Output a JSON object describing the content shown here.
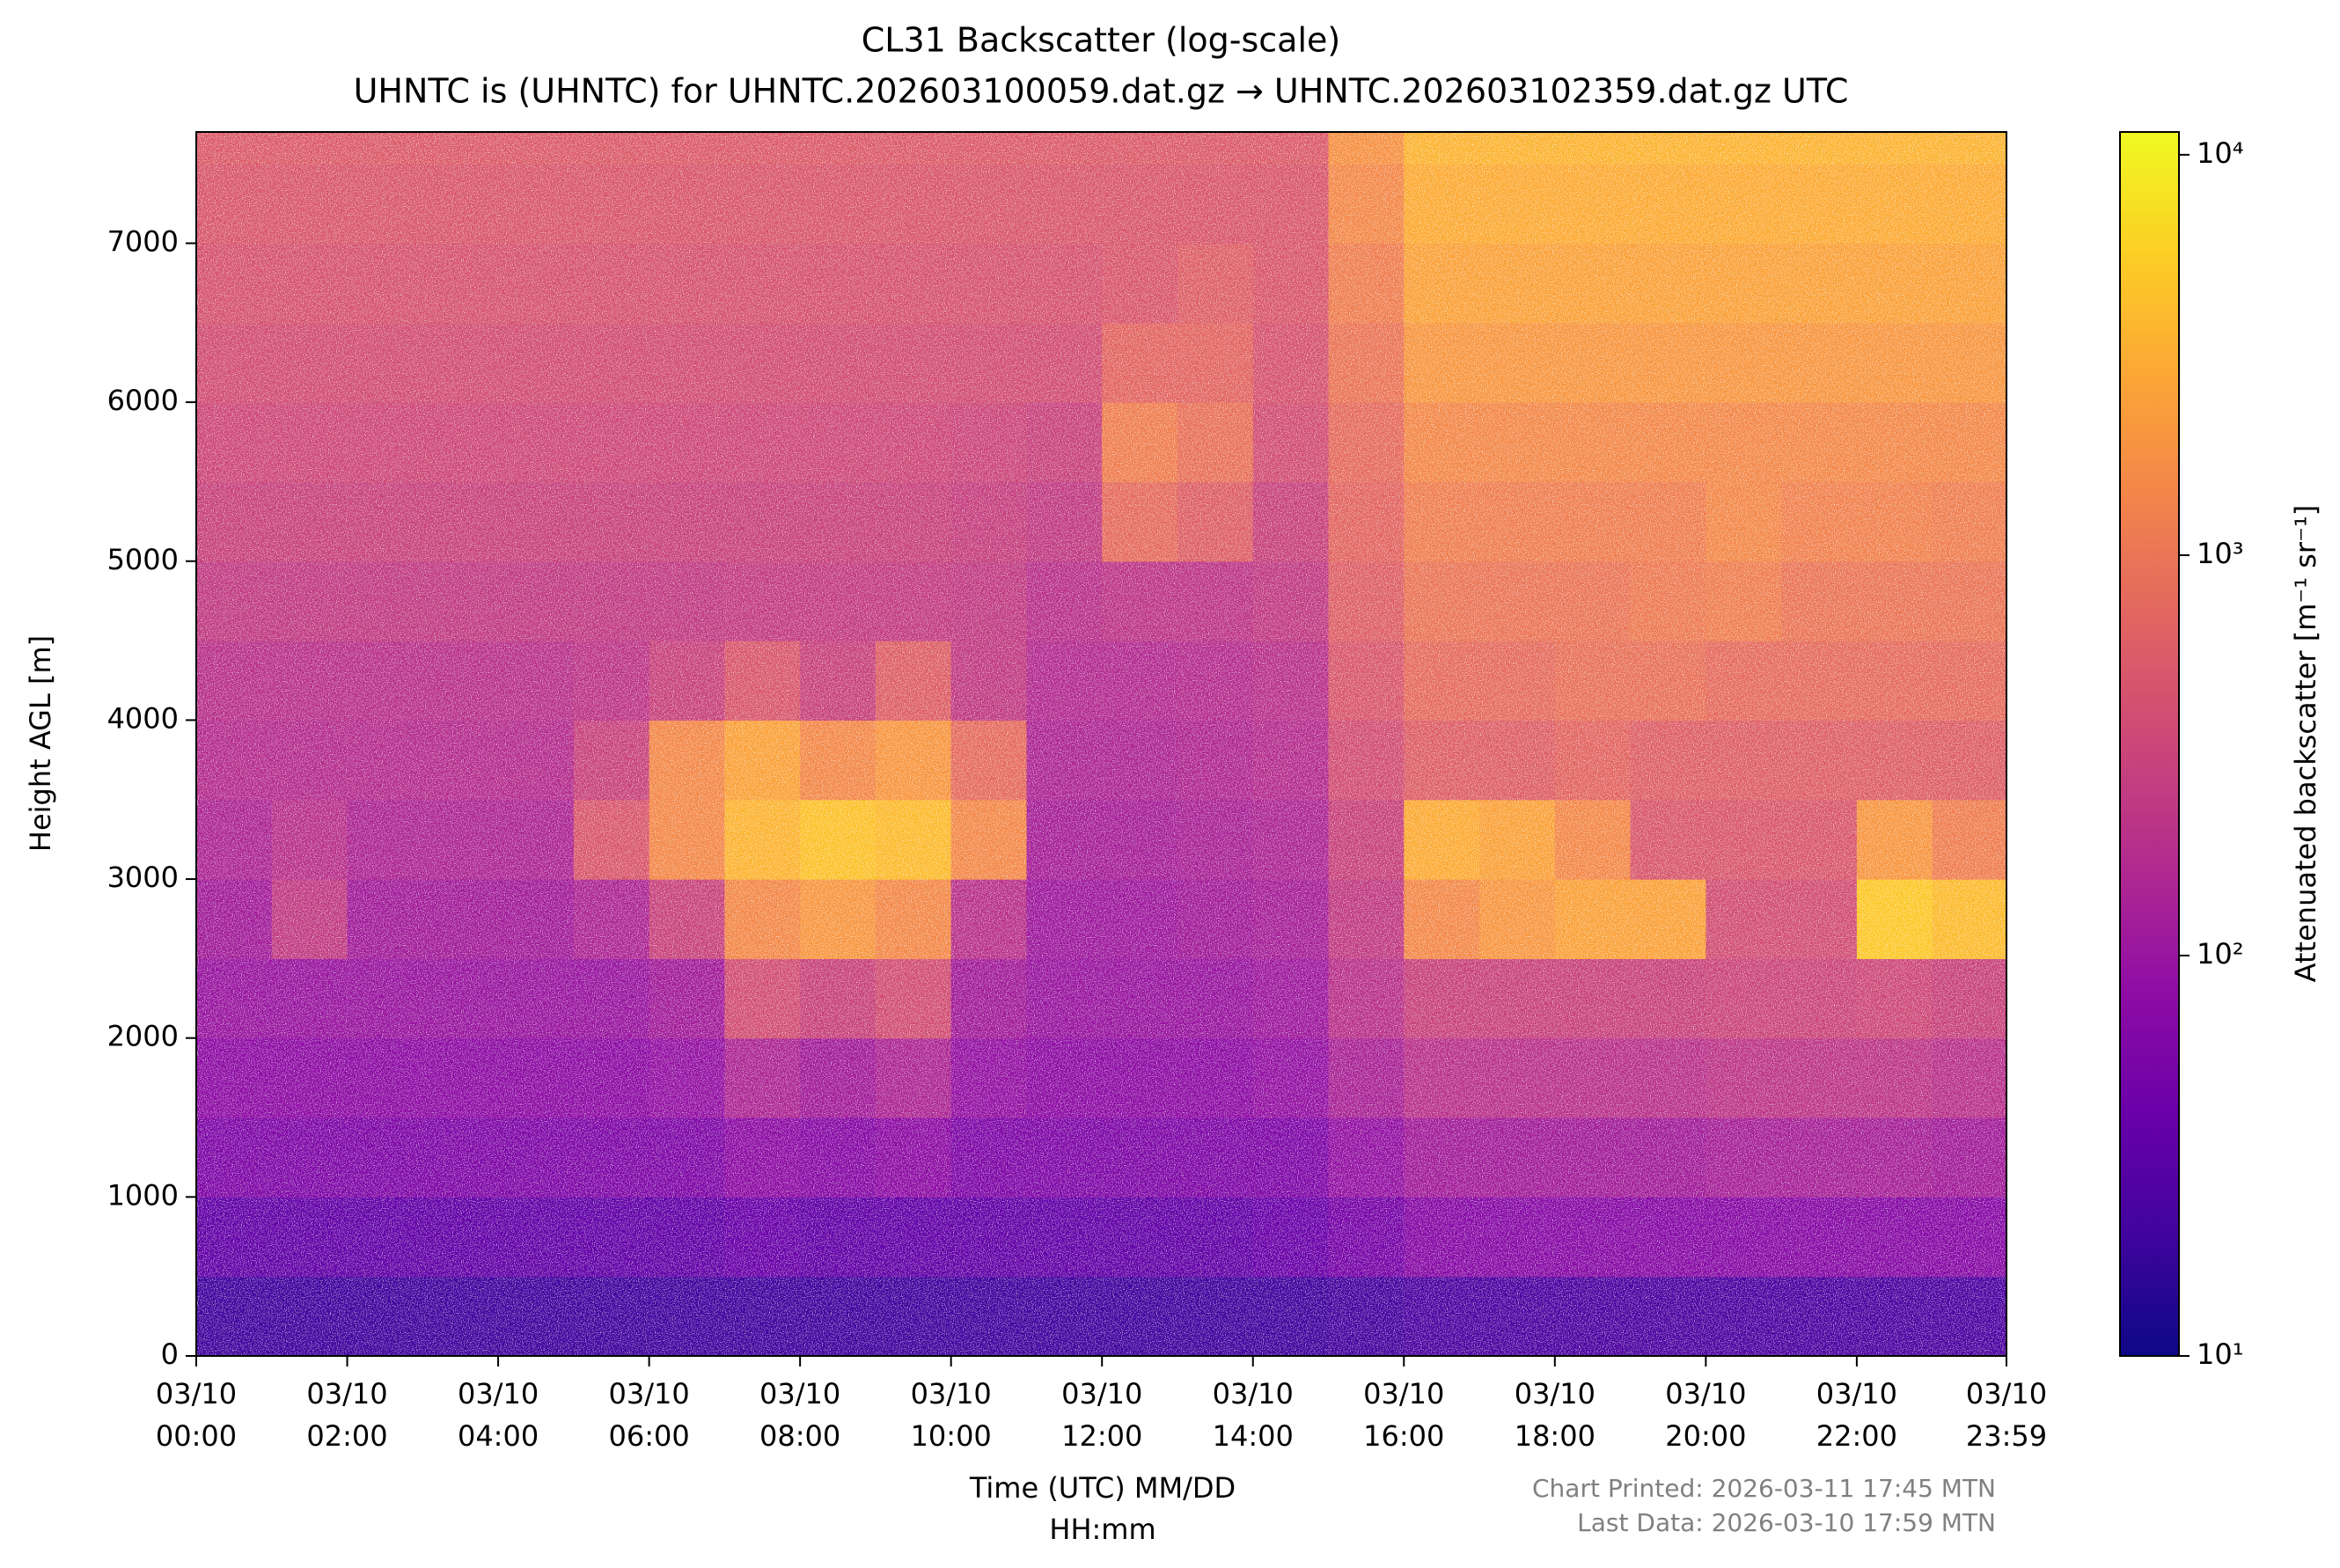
{
  "chart_data": {
    "type": "heatmap",
    "title": "CL31 Backscatter (log-scale)",
    "subtitle": "UHNTC is (UHNTC) for UHNTC.202603100059.dat.gz → UHNTC.202603102359.dat.gz UTC",
    "xlabel": [
      "Time (UTC) MM/DD",
      "HH:mm"
    ],
    "ylabel": "Height AGL [m]",
    "annotations": [
      "Chart Printed: 2026-03-11 17:45 MTN",
      "Last Data: 2026-03-10 17:59 MTN"
    ],
    "xlim": [
      0,
      1439
    ],
    "ylim": [
      0,
      7700
    ],
    "xticks": [
      {
        "value": 0,
        "label": [
          "03/10",
          "00:00"
        ]
      },
      {
        "value": 120,
        "label": [
          "03/10",
          "02:00"
        ]
      },
      {
        "value": 240,
        "label": [
          "03/10",
          "04:00"
        ]
      },
      {
        "value": 360,
        "label": [
          "03/10",
          "06:00"
        ]
      },
      {
        "value": 480,
        "label": [
          "03/10",
          "08:00"
        ]
      },
      {
        "value": 600,
        "label": [
          "03/10",
          "10:00"
        ]
      },
      {
        "value": 720,
        "label": [
          "03/10",
          "12:00"
        ]
      },
      {
        "value": 840,
        "label": [
          "03/10",
          "14:00"
        ]
      },
      {
        "value": 960,
        "label": [
          "03/10",
          "16:00"
        ]
      },
      {
        "value": 1080,
        "label": [
          "03/10",
          "18:00"
        ]
      },
      {
        "value": 1200,
        "label": [
          "03/10",
          "20:00"
        ]
      },
      {
        "value": 1320,
        "label": [
          "03/10",
          "22:00"
        ]
      },
      {
        "value": 1439,
        "label": [
          "03/10",
          "23:59"
        ]
      }
    ],
    "yticks": [
      0,
      1000,
      2000,
      3000,
      4000,
      5000,
      6000,
      7000
    ],
    "x_bins": [
      0,
      60,
      120,
      180,
      240,
      300,
      360,
      420,
      480,
      540,
      600,
      660,
      720,
      780,
      840,
      900,
      960,
      1020,
      1080,
      1140,
      1200,
      1260,
      1320,
      1380,
      1439
    ],
    "y_bins": [
      0,
      500,
      1000,
      1500,
      2000,
      2500,
      3000,
      3500,
      4000,
      4500,
      5000,
      5500,
      6000,
      6500,
      7000,
      7500,
      7700
    ],
    "z": [
      [
        20,
        20,
        20,
        20,
        20,
        20,
        20,
        20,
        20,
        20,
        20,
        20,
        20,
        20,
        20,
        22,
        25,
        25,
        25,
        25,
        25,
        25,
        25,
        25
      ],
      [
        35,
        35,
        35,
        35,
        35,
        35,
        35,
        40,
        35,
        35,
        35,
        35,
        35,
        35,
        40,
        50,
        70,
        70,
        70,
        70,
        70,
        70,
        70,
        70
      ],
      [
        60,
        60,
        60,
        60,
        60,
        60,
        60,
        80,
        70,
        80,
        60,
        60,
        60,
        60,
        60,
        90,
        120,
        120,
        120,
        120,
        130,
        130,
        130,
        120
      ],
      [
        80,
        80,
        80,
        80,
        80,
        80,
        90,
        150,
        120,
        150,
        90,
        80,
        80,
        80,
        90,
        140,
        200,
        200,
        200,
        200,
        220,
        220,
        220,
        200
      ],
      [
        100,
        100,
        100,
        100,
        100,
        100,
        120,
        400,
        300,
        400,
        120,
        100,
        100,
        100,
        110,
        200,
        300,
        300,
        300,
        300,
        320,
        320,
        350,
        300
      ],
      [
        120,
        250,
        120,
        120,
        120,
        150,
        300,
        1500,
        2000,
        1500,
        200,
        110,
        110,
        120,
        130,
        250,
        1500,
        2000,
        2500,
        2500,
        400,
        400,
        5000,
        4000
      ],
      [
        150,
        200,
        150,
        150,
        150,
        500,
        1500,
        3500,
        4500,
        4000,
        1500,
        130,
        130,
        140,
        150,
        300,
        3000,
        2500,
        1500,
        500,
        500,
        500,
        2000,
        1200
      ],
      [
        180,
        180,
        180,
        180,
        180,
        300,
        1500,
        2500,
        1500,
        2000,
        800,
        150,
        150,
        160,
        180,
        400,
        600,
        600,
        700,
        600,
        600,
        600,
        600,
        600
      ],
      [
        200,
        200,
        200,
        200,
        200,
        220,
        300,
        500,
        300,
        600,
        250,
        170,
        170,
        180,
        200,
        500,
        800,
        800,
        900,
        900,
        800,
        800,
        800,
        800
      ],
      [
        250,
        250,
        250,
        250,
        250,
        250,
        250,
        260,
        260,
        260,
        250,
        200,
        220,
        220,
        250,
        600,
        1000,
        1000,
        1000,
        1100,
        1200,
        1000,
        1000,
        1000
      ],
      [
        300,
        300,
        300,
        300,
        300,
        300,
        300,
        300,
        300,
        300,
        280,
        250,
        800,
        600,
        300,
        700,
        1200,
        1200,
        1200,
        1200,
        1500,
        1300,
        1300,
        1200
      ],
      [
        350,
        350,
        350,
        350,
        350,
        350,
        350,
        350,
        350,
        350,
        330,
        300,
        1200,
        900,
        400,
        800,
        1500,
        1500,
        1500,
        1500,
        1500,
        1500,
        1500,
        1500
      ],
      [
        400,
        400,
        400,
        400,
        400,
        400,
        400,
        400,
        400,
        400,
        400,
        400,
        700,
        700,
        450,
        1000,
        2000,
        2000,
        2000,
        2000,
        2000,
        2000,
        2000,
        2000
      ],
      [
        450,
        450,
        450,
        450,
        450,
        450,
        450,
        450,
        450,
        450,
        450,
        450,
        500,
        600,
        500,
        1200,
        2500,
        2500,
        2500,
        2500,
        2500,
        2500,
        2500,
        2500
      ],
      [
        500,
        500,
        500,
        500,
        500,
        500,
        500,
        500,
        500,
        500,
        500,
        500,
        500,
        500,
        500,
        1500,
        3000,
        3000,
        3000,
        3000,
        3000,
        3000,
        3000,
        3000
      ],
      [
        550,
        550,
        550,
        550,
        550,
        550,
        550,
        550,
        550,
        550,
        550,
        550,
        550,
        550,
        550,
        1800,
        3500,
        3500,
        3500,
        3500,
        3500,
        3500,
        3500,
        3500
      ]
    ],
    "colorbar": {
      "label": "Attenuated backscatter [m⁻¹ sr⁻¹]",
      "scale": "log",
      "colormap": "plasma",
      "lim": [
        10,
        11400
      ],
      "ticks": [
        {
          "value": 10,
          "label": "10¹"
        },
        {
          "value": 100,
          "label": "10²"
        },
        {
          "value": 1000,
          "label": "10³"
        },
        {
          "value": 10000,
          "label": "10⁴"
        }
      ]
    }
  }
}
